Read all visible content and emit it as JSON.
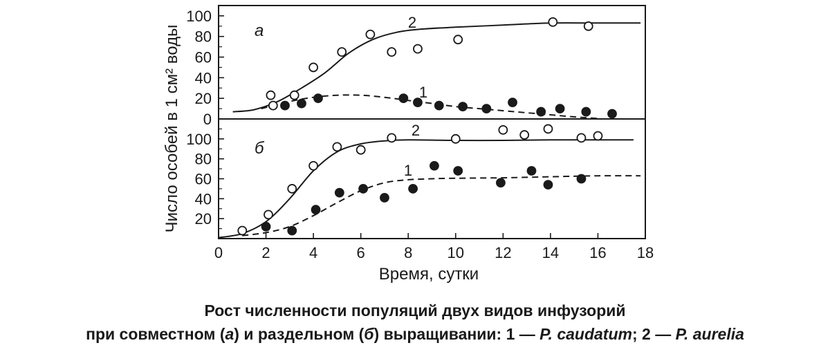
{
  "chart_data": [
    {
      "panel_label": "а",
      "type": "scatter",
      "xlabel": "Время, сутки",
      "ylabel": "Число особей в 1 см² воды",
      "xlim": [
        0,
        18
      ],
      "ylim": [
        0,
        110
      ],
      "x_ticks": [
        0,
        2,
        4,
        6,
        8,
        10,
        12,
        14,
        16,
        18
      ],
      "y_ticks": [
        20,
        40,
        60,
        80,
        100
      ],
      "series": [
        {
          "name": "2",
          "marker": "open-circle",
          "line": "solid",
          "points": [
            [
              2.2,
              23
            ],
            [
              2.3,
              13
            ],
            [
              3.2,
              23
            ],
            [
              4.0,
              50
            ],
            [
              5.2,
              65
            ],
            [
              6.4,
              82
            ],
            [
              7.3,
              65
            ],
            [
              8.4,
              68
            ],
            [
              10.1,
              77
            ],
            [
              14.1,
              94
            ],
            [
              15.6,
              90
            ]
          ],
          "curve": [
            [
              0.6,
              7
            ],
            [
              1.5,
              9
            ],
            [
              2.5,
              17
            ],
            [
              3.5,
              30
            ],
            [
              4.5,
              45
            ],
            [
              5.5,
              64
            ],
            [
              6.5,
              77
            ],
            [
              7.5,
              84
            ],
            [
              8.5,
              87
            ],
            [
              10,
              89
            ],
            [
              12,
              91
            ],
            [
              14,
              93
            ],
            [
              16,
              93
            ],
            [
              17.8,
              93
            ]
          ]
        },
        {
          "name": "1",
          "marker": "filled-circle",
          "line": "dashed",
          "points": [
            [
              2.8,
              13
            ],
            [
              3.5,
              15
            ],
            [
              4.2,
              20
            ],
            [
              7.8,
              20
            ],
            [
              8.4,
              16
            ],
            [
              9.3,
              13
            ],
            [
              10.3,
              12
            ],
            [
              11.3,
              10
            ],
            [
              12.4,
              16
            ],
            [
              13.6,
              7
            ],
            [
              14.4,
              10
            ],
            [
              15.5,
              7
            ],
            [
              16.6,
              5
            ]
          ],
          "curve": [
            [
              1.8,
              10
            ],
            [
              3.0,
              17
            ],
            [
              4.0,
              21
            ],
            [
              5.0,
              23
            ],
            [
              6.0,
              23
            ],
            [
              7.0,
              21
            ],
            [
              8.0,
              18
            ],
            [
              9.0,
              15
            ],
            [
              10.0,
              12
            ],
            [
              11.0,
              10
            ],
            [
              12.0,
              8
            ],
            [
              13.0,
              6
            ],
            [
              14.0,
              4
            ],
            [
              15.0,
              2
            ],
            [
              16.0,
              0.5
            ]
          ]
        }
      ]
    },
    {
      "panel_label": "б",
      "type": "scatter",
      "xlabel": "Время, сутки",
      "ylabel": "Число особей в 1 см² воды",
      "xlim": [
        0,
        18
      ],
      "ylim": [
        0,
        120
      ],
      "x_ticks": [
        0,
        2,
        4,
        6,
        8,
        10,
        12,
        14,
        16,
        18
      ],
      "y_ticks": [
        20,
        40,
        60,
        80,
        100
      ],
      "series": [
        {
          "name": "2",
          "marker": "open-circle",
          "line": "solid",
          "points": [
            [
              1.0,
              8
            ],
            [
              2.1,
              24
            ],
            [
              3.1,
              50
            ],
            [
              4.0,
              73
            ],
            [
              5.0,
              92
            ],
            [
              6.0,
              89
            ],
            [
              7.3,
              101
            ],
            [
              10.0,
              100
            ],
            [
              12.0,
              109
            ],
            [
              12.9,
              104
            ],
            [
              13.9,
              110
            ],
            [
              15.3,
              101
            ],
            [
              16.0,
              103
            ]
          ],
          "curve": [
            [
              0,
              1
            ],
            [
              1,
              5
            ],
            [
              2,
              17
            ],
            [
              3,
              40
            ],
            [
              4,
              68
            ],
            [
              5,
              87
            ],
            [
              6,
              95
            ],
            [
              7,
              98
            ],
            [
              8,
              99
            ],
            [
              10,
              98.5
            ],
            [
              12,
              98.5
            ],
            [
              14,
              99
            ],
            [
              16,
              99
            ],
            [
              17.5,
              99
            ]
          ]
        },
        {
          "name": "1",
          "marker": "filled-circle",
          "line": "dashed",
          "points": [
            [
              2.0,
              12
            ],
            [
              3.1,
              8
            ],
            [
              4.1,
              29
            ],
            [
              5.1,
              46
            ],
            [
              6.1,
              50
            ],
            [
              7.0,
              41
            ],
            [
              8.2,
              50
            ],
            [
              9.1,
              73
            ],
            [
              10.1,
              68
            ],
            [
              11.9,
              56
            ],
            [
              13.2,
              68
            ],
            [
              13.9,
              54
            ],
            [
              15.3,
              60
            ]
          ],
          "curve": [
            [
              1.0,
              3
            ],
            [
              2.0,
              6
            ],
            [
              3.0,
              12
            ],
            [
              4.0,
              23
            ],
            [
              5.0,
              36
            ],
            [
              6.0,
              48
            ],
            [
              7.0,
              56
            ],
            [
              8.0,
              59
            ],
            [
              9.0,
              60
            ],
            [
              10.0,
              60.5
            ],
            [
              12.0,
              61
            ],
            [
              14.0,
              62
            ],
            [
              16.0,
              63
            ],
            [
              17.8,
              63
            ]
          ]
        }
      ]
    }
  ],
  "caption": {
    "line1": "Рост численности популяций двух видов инфузорий",
    "line2_a": "при совместном (",
    "line2_a_italic": "а",
    "line2_b": ") и раздельном (",
    "line2_b_italic": "б",
    "line2_c": ") выращивании: 1 — ",
    "species1": "P. caudatum",
    "line2_d": "; 2 — ",
    "species2": "P. aurelia"
  }
}
